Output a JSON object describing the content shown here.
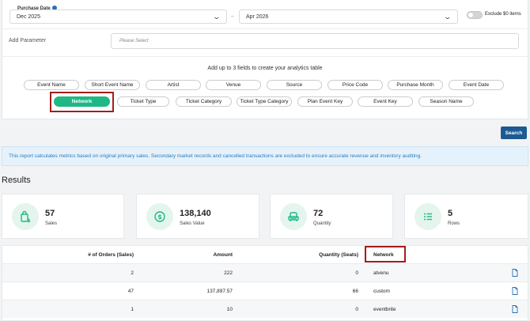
{
  "filters": {
    "purchase_date_label": "Purchase Date",
    "date_from": "Dec 2025",
    "date_separator": "–",
    "date_to": "Apr 2026",
    "exclude_zero_label": "Exclude $0 items",
    "add_parameter_label": "Add Parameter",
    "add_parameter_placeholder": "Please Select",
    "hint": "Add up to 3 fields to create your analytics table",
    "chips_row1": [
      "Event Name",
      "Short Event Name",
      "Artist",
      "Venue",
      "Source",
      "Price Code",
      "Purchase Month",
      "Event Date"
    ],
    "chips_row2": [
      "Network",
      "Ticket Type",
      "Ticket Category",
      "Ticket Type Category",
      "Plan Event Key",
      "Event Key",
      "Season Name"
    ],
    "active_chip": "Network",
    "search_label": "Search"
  },
  "notice": "This report calculates metrics based on original primary sales. Secondary market records and cancelled transactions are excluded to ensure accurate revenue and inventory auditing.",
  "results": {
    "title": "Results",
    "stats": [
      {
        "value": "57",
        "label": "Sales",
        "icon": "bag-dollar-icon"
      },
      {
        "value": "138,140",
        "label": "Sales Value",
        "icon": "dollar-circle-icon"
      },
      {
        "value": "72",
        "label": "Quantity",
        "icon": "seat-icon"
      },
      {
        "value": "5",
        "label": "Rows",
        "icon": "list-icon"
      }
    ]
  },
  "table": {
    "columns": [
      "# of Orders (Sales)",
      "Amount",
      "Quantity (Seats)",
      "Network"
    ],
    "rows": [
      {
        "orders": "2",
        "amount": "222",
        "quantity": "0",
        "network": "atvenu"
      },
      {
        "orders": "47",
        "amount": "137,897.57",
        "quantity": "66",
        "network": "custom"
      },
      {
        "orders": "1",
        "amount": "10",
        "quantity": "0",
        "network": "eventbrite"
      }
    ]
  },
  "colors": {
    "accent_green": "#1fb885",
    "primary_blue": "#1d5a91",
    "highlight_red": "#a21d1d",
    "notice_text": "#2a7bbd"
  }
}
